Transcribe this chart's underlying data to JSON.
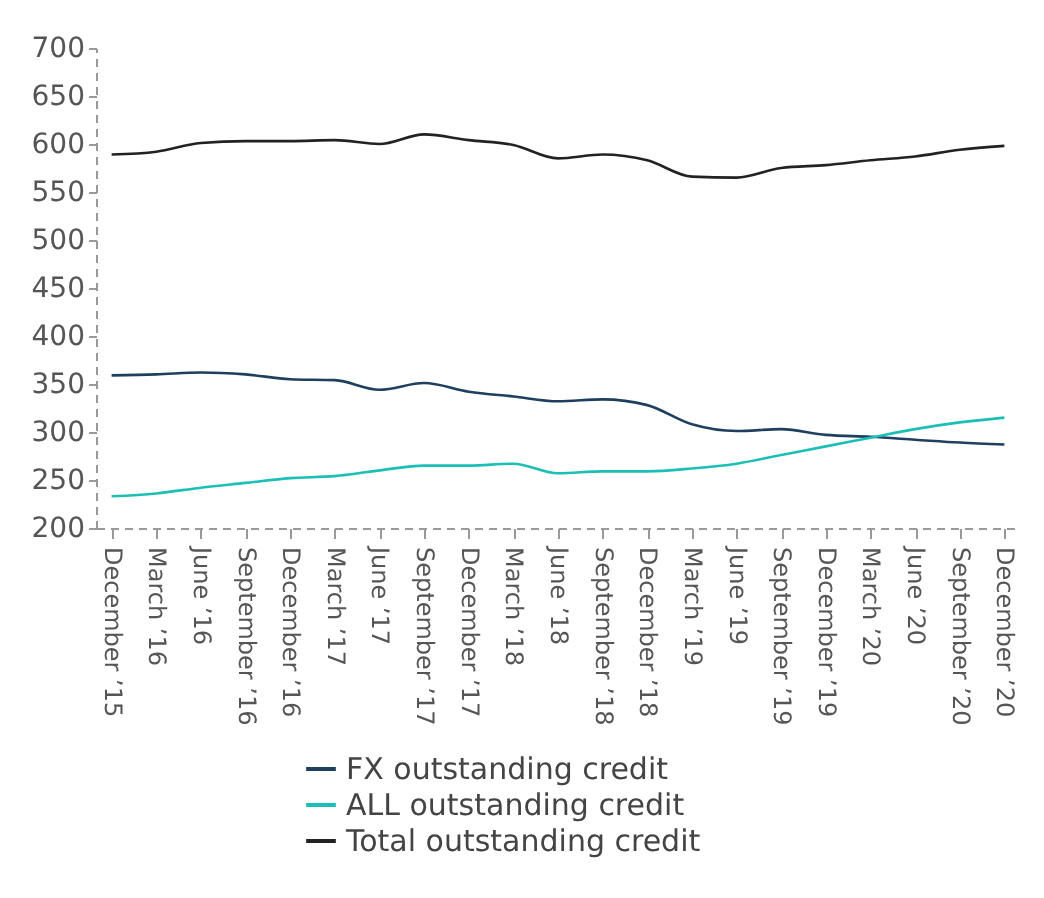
{
  "chart_data": {
    "type": "line",
    "categories": [
      "December ’15",
      "March ’16",
      "June ’16",
      "September ’16",
      "December ’16",
      "March ’17",
      "June ’17",
      "September ’17",
      "December ’17",
      "March ’18",
      "June ’18",
      "September ’18",
      "December ’18",
      "March ’19",
      "June ’19",
      "September ’19",
      "December ’19",
      "March ’20",
      "June ’20",
      "September ’20",
      "December ’20"
    ],
    "series": [
      {
        "name": "FX outstanding credit",
        "color": "#1f3f5f",
        "values": [
          359,
          360,
          362,
          360,
          355,
          354,
          344,
          351,
          342,
          337,
          332,
          334,
          328,
          308,
          301,
          303,
          297,
          295,
          292,
          289,
          287
        ]
      },
      {
        "name": "ALL outstanding credit",
        "color": "#1bbfb5",
        "values": [
          233,
          236,
          242,
          247,
          252,
          254,
          260,
          265,
          265,
          267,
          257,
          259,
          259,
          262,
          267,
          276,
          285,
          294,
          303,
          310,
          315
        ]
      },
      {
        "name": "Total outstanding credit",
        "color": "#222222",
        "values": [
          589,
          592,
          601,
          603,
          603,
          604,
          600,
          610,
          604,
          599,
          585,
          589,
          583,
          566,
          565,
          575,
          578,
          583,
          587,
          594,
          598
        ]
      }
    ],
    "ylim": [
      200,
      700
    ],
    "yticks": [
      200,
      250,
      300,
      350,
      400,
      450,
      500,
      550,
      600,
      650,
      700
    ],
    "grid": false,
    "legend": "bottom"
  }
}
